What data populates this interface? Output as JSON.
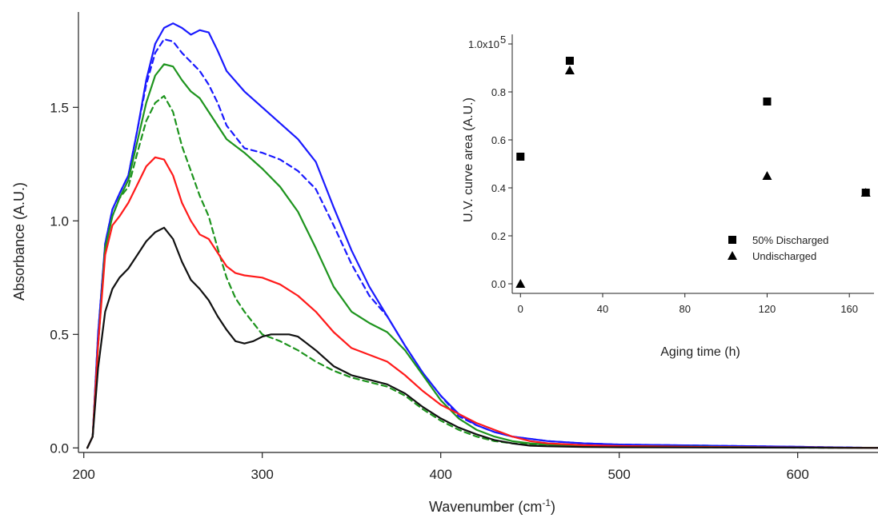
{
  "chart_data": [
    {
      "type": "line",
      "title": "",
      "xlabel": "Wavenumber (cm",
      "xlabel_sup": "-1",
      "xlabel_close": ")",
      "ylabel": "Absorbance (A.U.)",
      "xlim": [
        197,
        645
      ],
      "ylim": [
        -0.02,
        1.92
      ],
      "xticks": [
        200,
        300,
        400,
        500,
        600
      ],
      "yticks": [
        0.0,
        0.5,
        1.0,
        1.5
      ],
      "xtick_labels": [
        "200",
        "300",
        "400",
        "500",
        "600"
      ],
      "ytick_labels": [
        "0.0",
        "0.5",
        "1.0",
        "1.5"
      ],
      "grid": false,
      "legend": "none",
      "series": [
        {
          "color": "#1a1aff",
          "dash": false,
          "x": [
            202,
            205,
            208,
            212,
            216,
            220,
            225,
            230,
            235,
            240,
            245,
            250,
            255,
            260,
            265,
            270,
            275,
            280,
            290,
            300,
            310,
            320,
            330,
            340,
            350,
            360,
            370,
            380,
            390,
            400,
            410,
            420,
            430,
            440,
            450,
            460,
            480,
            500,
            550,
            600,
            645
          ],
          "y": [
            0.0,
            0.05,
            0.5,
            0.9,
            1.05,
            1.12,
            1.2,
            1.4,
            1.62,
            1.78,
            1.85,
            1.87,
            1.85,
            1.82,
            1.84,
            1.83,
            1.75,
            1.66,
            1.57,
            1.5,
            1.43,
            1.36,
            1.26,
            1.06,
            0.87,
            0.71,
            0.58,
            0.45,
            0.33,
            0.23,
            0.15,
            0.1,
            0.07,
            0.05,
            0.04,
            0.03,
            0.02,
            0.015,
            0.01,
            0.005,
            0.0
          ]
        },
        {
          "color": "#1a1aff",
          "dash": true,
          "x": [
            202,
            205,
            208,
            212,
            216,
            220,
            225,
            230,
            235,
            240,
            245,
            250,
            255,
            260,
            265,
            270,
            275,
            280,
            290,
            300,
            310,
            320,
            330,
            340,
            350,
            360,
            370,
            380,
            390,
            400,
            410,
            420,
            430,
            440,
            450,
            460,
            480,
            500,
            550,
            600,
            645
          ],
          "y": [
            0.0,
            0.05,
            0.5,
            0.9,
            1.05,
            1.12,
            1.2,
            1.4,
            1.6,
            1.74,
            1.8,
            1.79,
            1.74,
            1.7,
            1.66,
            1.6,
            1.52,
            1.42,
            1.32,
            1.3,
            1.27,
            1.22,
            1.14,
            0.98,
            0.81,
            0.67,
            0.58,
            0.45,
            0.33,
            0.23,
            0.14,
            0.1,
            0.07,
            0.05,
            0.04,
            0.03,
            0.02,
            0.015,
            0.01,
            0.005,
            0.0
          ]
        },
        {
          "color": "#1e941e",
          "dash": false,
          "x": [
            202,
            205,
            208,
            212,
            216,
            220,
            225,
            230,
            235,
            240,
            245,
            250,
            255,
            260,
            265,
            270,
            280,
            290,
            300,
            310,
            320,
            330,
            340,
            350,
            360,
            370,
            380,
            390,
            400,
            410,
            420,
            430,
            440,
            450,
            460,
            480,
            500,
            550,
            600,
            645
          ],
          "y": [
            0.0,
            0.05,
            0.45,
            0.88,
            1.02,
            1.1,
            1.18,
            1.35,
            1.52,
            1.64,
            1.69,
            1.68,
            1.62,
            1.57,
            1.54,
            1.48,
            1.36,
            1.3,
            1.23,
            1.15,
            1.04,
            0.88,
            0.71,
            0.6,
            0.55,
            0.51,
            0.43,
            0.32,
            0.21,
            0.13,
            0.08,
            0.05,
            0.03,
            0.02,
            0.015,
            0.01,
            0.008,
            0.005,
            0.002,
            0.0
          ]
        },
        {
          "color": "#1e941e",
          "dash": true,
          "x": [
            202,
            205,
            208,
            212,
            216,
            220,
            225,
            230,
            235,
            240,
            245,
            250,
            255,
            260,
            265,
            270,
            275,
            280,
            285,
            290,
            300,
            310,
            320,
            330,
            340,
            350,
            360,
            370,
            380,
            390,
            400,
            410,
            420,
            430,
            440,
            450,
            460,
            480,
            500,
            550,
            600,
            645
          ],
          "y": [
            0.0,
            0.05,
            0.45,
            0.88,
            1.02,
            1.1,
            1.15,
            1.3,
            1.44,
            1.52,
            1.55,
            1.48,
            1.33,
            1.22,
            1.11,
            1.02,
            0.88,
            0.75,
            0.66,
            0.6,
            0.5,
            0.47,
            0.43,
            0.38,
            0.34,
            0.31,
            0.29,
            0.27,
            0.23,
            0.17,
            0.12,
            0.08,
            0.05,
            0.03,
            0.02,
            0.015,
            0.01,
            0.008,
            0.005,
            0.003,
            0.001,
            0.0
          ]
        },
        {
          "color": "#ff1a1a",
          "dash": false,
          "x": [
            202,
            205,
            208,
            212,
            216,
            220,
            225,
            230,
            235,
            240,
            245,
            250,
            255,
            260,
            265,
            270,
            275,
            280,
            285,
            290,
            300,
            310,
            320,
            330,
            340,
            350,
            360,
            370,
            380,
            390,
            400,
            410,
            420,
            430,
            440,
            450,
            460,
            480,
            500,
            550,
            600,
            645
          ],
          "y": [
            0.0,
            0.05,
            0.45,
            0.85,
            0.98,
            1.02,
            1.08,
            1.16,
            1.24,
            1.28,
            1.27,
            1.2,
            1.08,
            1.0,
            0.94,
            0.92,
            0.86,
            0.8,
            0.77,
            0.76,
            0.75,
            0.72,
            0.67,
            0.6,
            0.51,
            0.44,
            0.41,
            0.38,
            0.32,
            0.25,
            0.19,
            0.15,
            0.11,
            0.08,
            0.05,
            0.03,
            0.02,
            0.012,
            0.008,
            0.004,
            0.002,
            0.0
          ]
        },
        {
          "color": "#111111",
          "dash": false,
          "x": [
            202,
            205,
            208,
            212,
            216,
            220,
            225,
            230,
            235,
            240,
            245,
            250,
            255,
            260,
            265,
            270,
            275,
            280,
            285,
            290,
            295,
            300,
            305,
            310,
            315,
            320,
            330,
            340,
            350,
            360,
            370,
            380,
            390,
            400,
            410,
            420,
            430,
            440,
            450,
            460,
            480,
            500,
            550,
            600,
            645
          ],
          "y": [
            0.0,
            0.05,
            0.35,
            0.6,
            0.7,
            0.75,
            0.79,
            0.85,
            0.91,
            0.95,
            0.97,
            0.92,
            0.82,
            0.74,
            0.7,
            0.65,
            0.58,
            0.52,
            0.47,
            0.46,
            0.47,
            0.49,
            0.5,
            0.5,
            0.5,
            0.49,
            0.43,
            0.36,
            0.32,
            0.3,
            0.28,
            0.24,
            0.18,
            0.13,
            0.09,
            0.06,
            0.035,
            0.02,
            0.01,
            0.007,
            0.004,
            0.003,
            0.002,
            0.001,
            0.0
          ]
        }
      ]
    },
    {
      "type": "scatter",
      "title": "",
      "xlabel": "Aging time (h)",
      "ylabel": "U.V. curve area (A.U.)",
      "xlim": [
        -4,
        172
      ],
      "ylim": [
        -0.04,
        1.04
      ],
      "xticks": [
        0,
        40,
        80,
        120,
        160
      ],
      "yticks": [
        0.0,
        0.2,
        0.4,
        0.6,
        0.8,
        1.0
      ],
      "xtick_labels": [
        "0",
        "40",
        "80",
        "120",
        "160"
      ],
      "ytick_labels": [
        "0.0",
        "0.2",
        "0.4",
        "0.6",
        "0.8",
        "1.0x10"
      ],
      "ytick_exponent": "5",
      "grid": false,
      "legend": "bottom-right",
      "series": [
        {
          "name": "50% Discharged",
          "marker": "square",
          "color": "#000000",
          "x": [
            0,
            24,
            120,
            168
          ],
          "y": [
            0.53,
            0.93,
            0.76,
            0.38
          ]
        },
        {
          "name": "Undischarged",
          "marker": "triangle",
          "color": "#000000",
          "x": [
            0,
            24,
            120,
            168
          ],
          "y": [
            0.0,
            0.89,
            0.45,
            0.38
          ]
        }
      ]
    }
  ]
}
